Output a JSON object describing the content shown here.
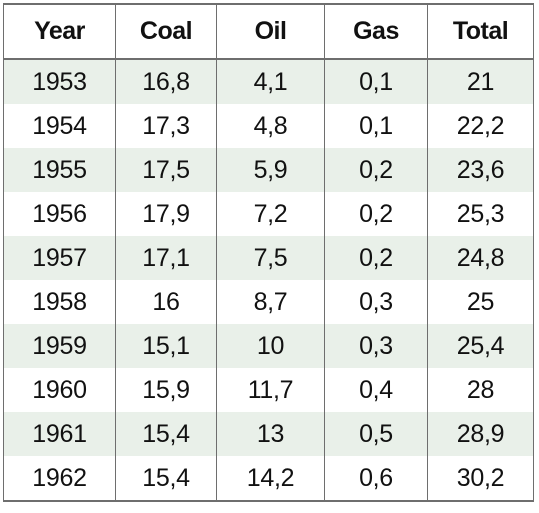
{
  "table": {
    "headers": [
      "Year",
      "Coal",
      "Oil",
      "Gas",
      "Total"
    ],
    "rows": [
      [
        "1953",
        "16,8",
        "4,1",
        "0,1",
        "21"
      ],
      [
        "1954",
        "17,3",
        "4,8",
        "0,1",
        "22,2"
      ],
      [
        "1955",
        "17,5",
        "5,9",
        "0,2",
        "23,6"
      ],
      [
        "1956",
        "17,9",
        "7,2",
        "0,2",
        "25,3"
      ],
      [
        "1957",
        "17,1",
        "7,5",
        "0,2",
        "24,8"
      ],
      [
        "1958",
        "16",
        "8,7",
        "0,3",
        "25"
      ],
      [
        "1959",
        "15,1",
        "10",
        "0,3",
        "25,4"
      ],
      [
        "1960",
        "15,9",
        "11,7",
        "0,4",
        "28"
      ],
      [
        "1961",
        "15,4",
        "13",
        "0,5",
        "28,9"
      ],
      [
        "1962",
        "15,4",
        "14,2",
        "0,6",
        "30,2"
      ]
    ]
  },
  "colors": {
    "stripe": "#e9f0e9",
    "border": "#6e6e6e",
    "text": "#111111"
  }
}
